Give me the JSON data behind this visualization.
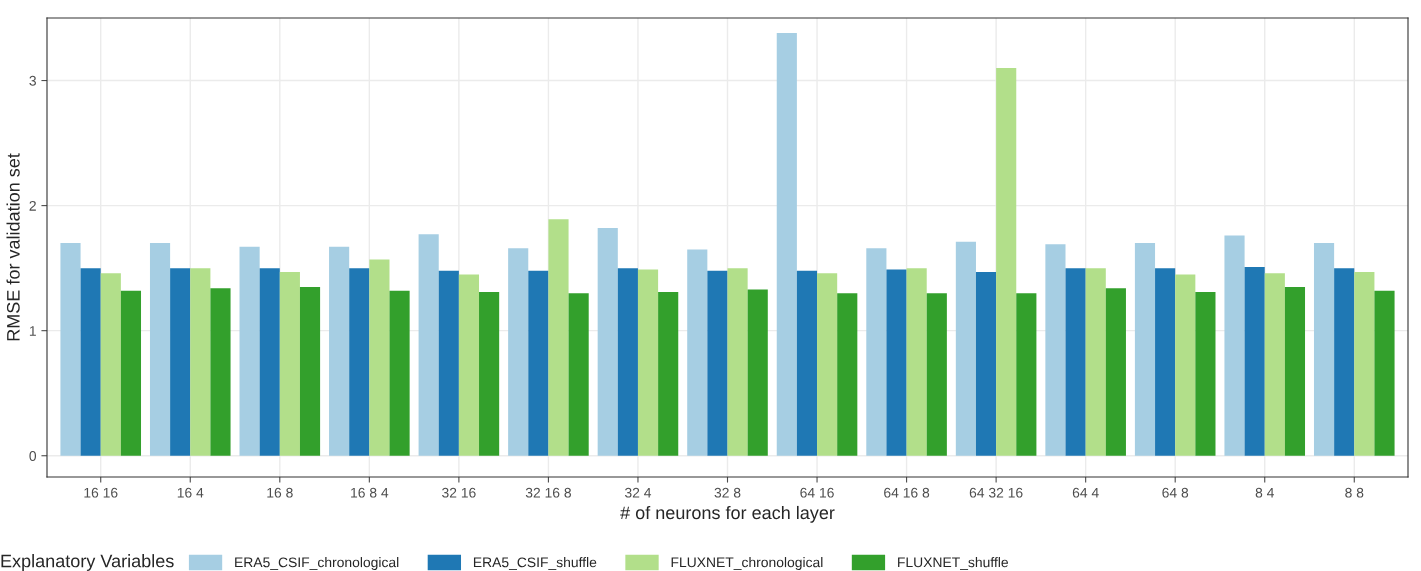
{
  "chart_data": {
    "type": "bar",
    "xlabel": "# of neurons for each layer",
    "ylabel": "RMSE for validation set",
    "legend_title": "Explanatory Variables",
    "categories": [
      "16 16",
      "16 4",
      "16 8",
      "16 8 4",
      "32 16",
      "32 16 8",
      "32 4",
      "32 8",
      "64 16",
      "64 16 8",
      "64 32 16",
      "64 4",
      "64 8",
      "8 4",
      "8 8"
    ],
    "series": [
      {
        "name": "ERA5_CSIF_chronological",
        "color": "#a6cee3",
        "values": [
          1.7,
          1.7,
          1.67,
          1.67,
          1.77,
          1.66,
          1.82,
          1.65,
          3.38,
          1.66,
          1.71,
          1.69,
          1.7,
          1.76,
          1.7
        ]
      },
      {
        "name": "ERA5_CSIF_shuffle",
        "color": "#1f78b4",
        "values": [
          1.5,
          1.5,
          1.5,
          1.5,
          1.48,
          1.48,
          1.5,
          1.48,
          1.48,
          1.49,
          1.47,
          1.5,
          1.5,
          1.51,
          1.5
        ]
      },
      {
        "name": "FLUXNET_chronological",
        "color": "#b2df8a",
        "values": [
          1.46,
          1.5,
          1.47,
          1.57,
          1.45,
          1.89,
          1.49,
          1.5,
          1.46,
          1.5,
          3.1,
          1.5,
          1.45,
          1.46,
          1.47
        ]
      },
      {
        "name": "FLUXNET_shuffle",
        "color": "#33a02c",
        "values": [
          1.32,
          1.34,
          1.35,
          1.32,
          1.31,
          1.3,
          1.31,
          1.33,
          1.3,
          1.3,
          1.3,
          1.34,
          1.31,
          1.35,
          1.32
        ]
      }
    ],
    "ylim": [
      -0.17,
      3.5
    ],
    "yticks": [
      0,
      1,
      2,
      3
    ],
    "grid": true,
    "legend": "bottom"
  }
}
